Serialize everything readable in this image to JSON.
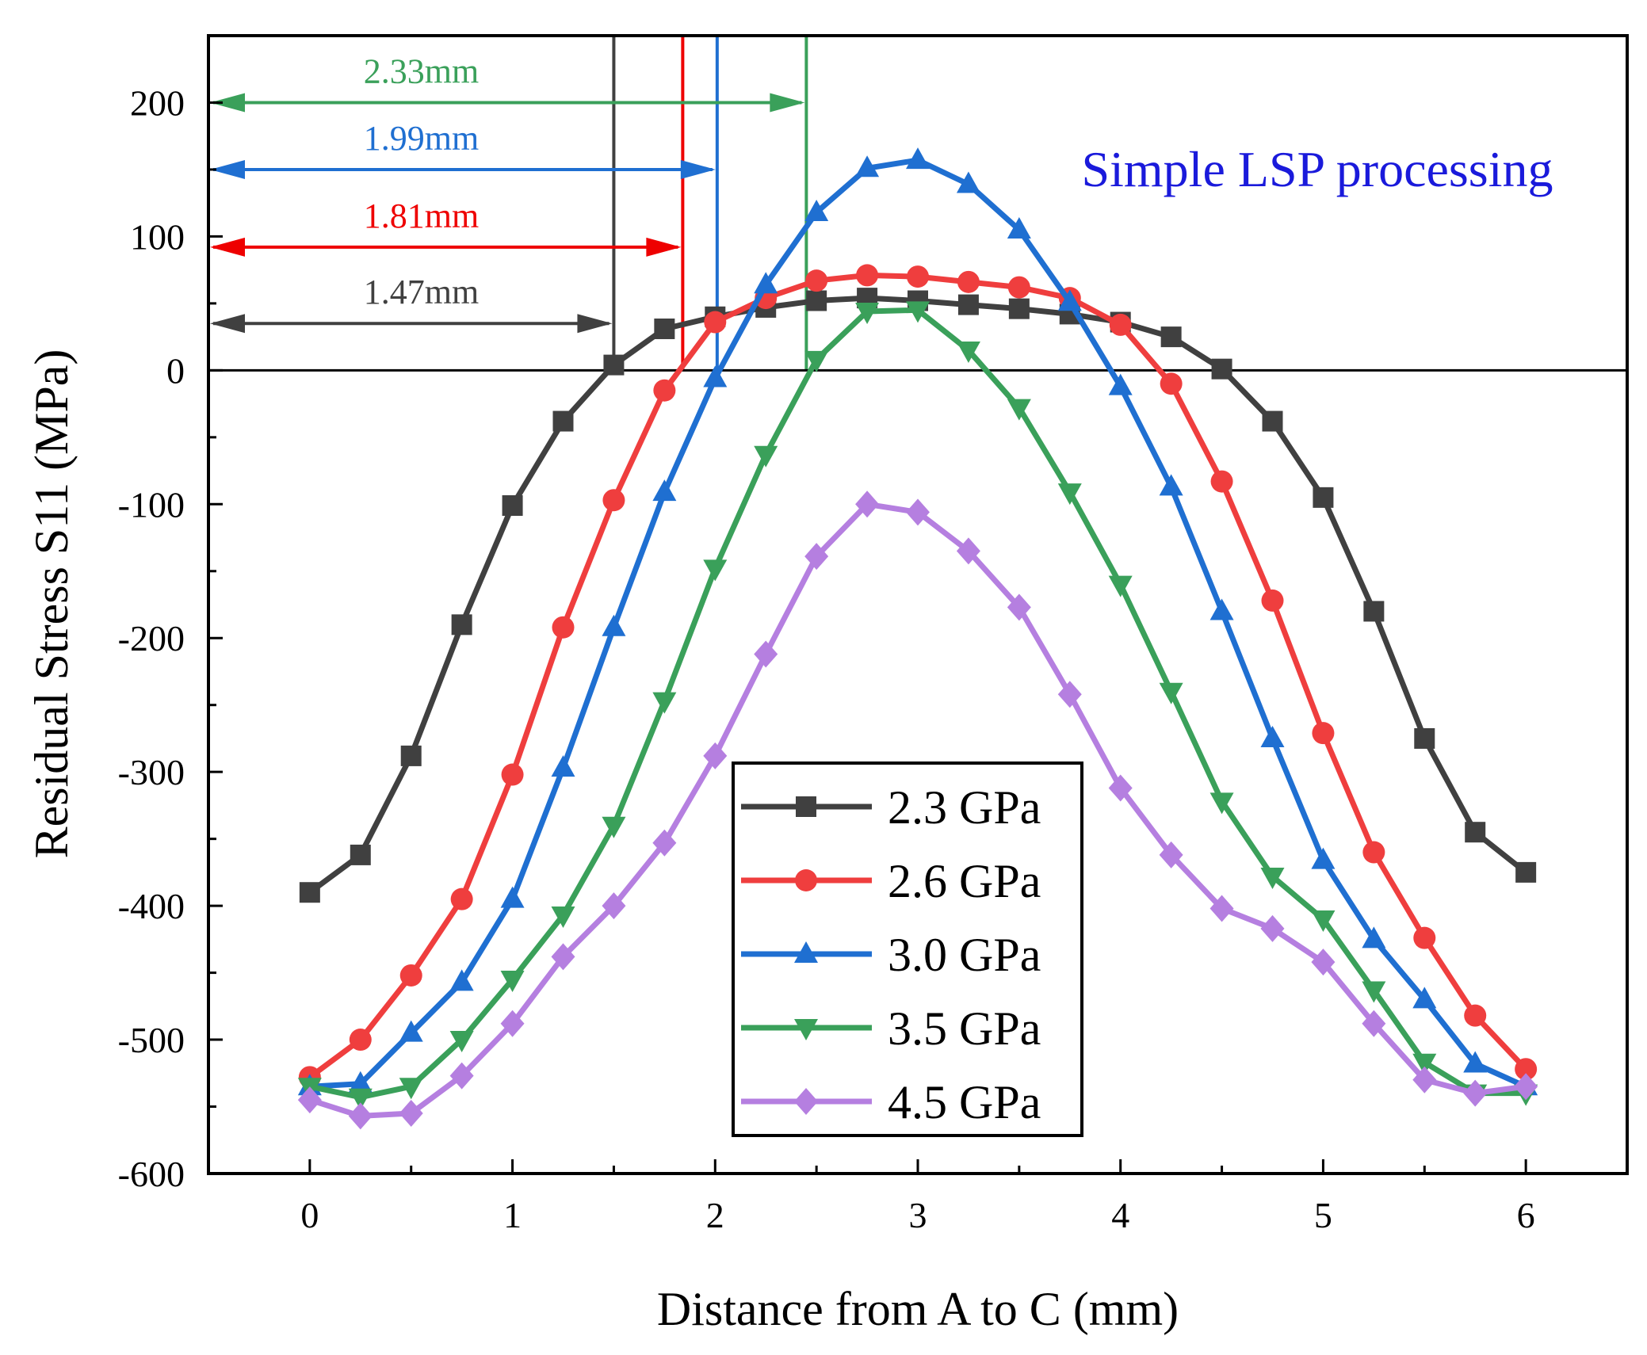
{
  "chart_data": {
    "type": "line",
    "title": "",
    "subtitle": "Simple LSP processing",
    "subtitle_color": "#1a1adb",
    "xlabel": "Distance from A to C (mm)",
    "ylabel": "Residual Stress S11 (MPa)",
    "xlim": [
      -0.5,
      6.5
    ],
    "ylim": [
      -600,
      250
    ],
    "xticks": [
      0,
      1,
      2,
      3,
      4,
      5,
      6
    ],
    "yticks": [
      -600,
      -500,
      -400,
      -300,
      -200,
      -100,
      0,
      100,
      200
    ],
    "x": [
      0,
      0.25,
      0.5,
      0.75,
      1.0,
      1.25,
      1.5,
      1.75,
      2.0,
      2.25,
      2.5,
      2.75,
      3.0,
      3.25,
      3.5,
      3.75,
      4.0,
      4.25,
      4.5,
      4.75,
      5.0,
      5.25,
      5.5,
      5.75,
      6.0
    ],
    "series": [
      {
        "name": "2.3 GPa",
        "color": "#404040",
        "marker": "square",
        "values": [
          -390,
          -362,
          -288,
          -190,
          -101,
          -38,
          4,
          31,
          40,
          47,
          52,
          54,
          52,
          49,
          46,
          42,
          36,
          25,
          1,
          -38,
          -95,
          -180,
          -275,
          -345,
          -375
        ]
      },
      {
        "name": "2.6 GPa",
        "color": "#ef3e3e",
        "marker": "circle",
        "values": [
          -528,
          -500,
          -452,
          -395,
          -302,
          -192,
          -97,
          -15,
          36,
          54,
          67,
          71,
          70,
          66,
          62,
          54,
          34,
          -10,
          -83,
          -172,
          -271,
          -360,
          -424,
          -482,
          -522
        ]
      },
      {
        "name": "3.0 GPa",
        "color": "#1f6fd1",
        "marker": "triangle-up",
        "values": [
          -535,
          -533,
          -495,
          -457,
          -395,
          -297,
          -192,
          -91,
          -6,
          64,
          118,
          151,
          157,
          139,
          105,
          51,
          -12,
          -87,
          -180,
          -275,
          -366,
          -425,
          -470,
          -518,
          -535
        ]
      },
      {
        "name": "3.5 GPa",
        "color": "#3aa05a",
        "marker": "triangle-down",
        "values": [
          -535,
          -543,
          -535,
          -500,
          -455,
          -407,
          -340,
          -247,
          -148,
          -63,
          8,
          44,
          45,
          15,
          -28,
          -91,
          -160,
          -240,
          -322,
          -378,
          -410,
          -463,
          -517,
          -540,
          -540
        ]
      },
      {
        "name": "4.5 GPa",
        "color": "#b57fe0",
        "marker": "diamond",
        "values": [
          -545,
          -557,
          -555,
          -527,
          -488,
          -438,
          -400,
          -353,
          -288,
          -212,
          -139,
          -100,
          -106,
          -135,
          -177,
          -242,
          -312,
          -362,
          -402,
          -417,
          -442,
          -488,
          -530,
          -540,
          -535
        ]
      }
    ],
    "annotations": [
      {
        "label": "1.47mm",
        "value": 1.47,
        "color": "#404040",
        "arrow_y": 35,
        "line_x": 1.5
      },
      {
        "label": "1.81mm",
        "value": 1.81,
        "color": "#ee0000",
        "arrow_y": 92,
        "line_x": 1.84
      },
      {
        "label": "1.99mm",
        "value": 1.99,
        "color": "#1f6fd1",
        "arrow_y": 150,
        "line_x": 2.01
      },
      {
        "label": "2.33mm",
        "value": 2.33,
        "color": "#3aa05a",
        "arrow_y": 200,
        "line_x": 2.45
      }
    ],
    "legend": {
      "position": "bottom-center"
    },
    "grid": false,
    "zero_line": true
  }
}
